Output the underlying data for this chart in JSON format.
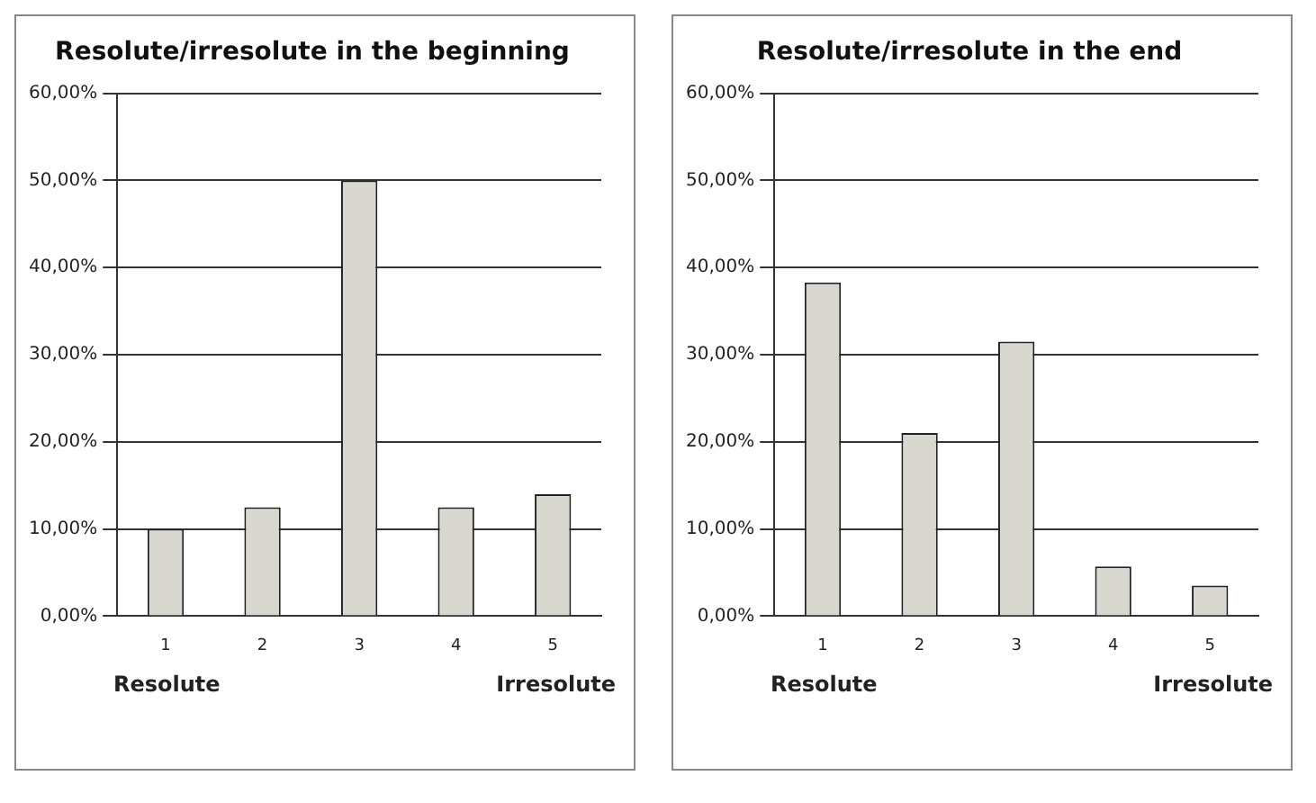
{
  "chart_data": [
    {
      "type": "bar",
      "title": "Resolute/irresolute in the beginning",
      "categories": [
        "1",
        "2",
        "3",
        "4",
        "5"
      ],
      "values": [
        10,
        12.5,
        50,
        12.5,
        14
      ],
      "color": "#d8d8d0",
      "ylim": [
        0,
        60
      ],
      "yticks": [
        {
          "value": 0,
          "label": "0,00%"
        },
        {
          "value": 10,
          "label": "10,00%"
        },
        {
          "value": 20,
          "label": "20,00%"
        },
        {
          "value": 30,
          "label": "30,00%"
        },
        {
          "value": 40,
          "label": "40,00%"
        },
        {
          "value": 50,
          "label": "50,00%"
        },
        {
          "value": 60,
          "label": "60,00%"
        }
      ],
      "grid": "y",
      "annotations": [
        "Resolute",
        "Irresolute"
      ]
    },
    {
      "type": "bar",
      "title": "Resolute/irresolute in the end",
      "categories": [
        "1",
        "2",
        "3",
        "4",
        "5"
      ],
      "values": [
        38.3,
        21,
        31.5,
        5.7,
        3.5
      ],
      "color": "#d8d8d0",
      "ylim": [
        0,
        60
      ],
      "yticks": [
        {
          "value": 0,
          "label": "0,00%"
        },
        {
          "value": 10,
          "label": "10,00%"
        },
        {
          "value": 20,
          "label": "20,00%"
        },
        {
          "value": 30,
          "label": "30,00%"
        },
        {
          "value": 40,
          "label": "40,00%"
        },
        {
          "value": 50,
          "label": "50,00%"
        },
        {
          "value": 60,
          "label": "60,00%"
        }
      ],
      "grid": "y",
      "annotations": [
        "Resolute",
        "Irresolute"
      ]
    }
  ]
}
